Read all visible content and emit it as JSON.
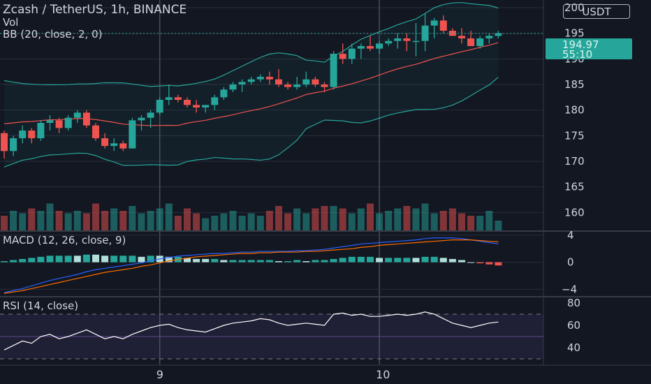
{
  "header": {
    "title": "Zcash / TetherUS, 1h, BINANCE",
    "volume_label": "Vol",
    "bb_label": "BB (20, close, 2, 0)",
    "currency": "USDT"
  },
  "price_tag": {
    "price": "194.97",
    "countdown": "55:10"
  },
  "colors": {
    "background": "#131722",
    "up": "#26a69a",
    "down": "#ef5350",
    "bb_band": "#26a69a",
    "bb_basis": "#ef5350",
    "macd_line": "#2962ff",
    "signal_line": "#ff6d00",
    "rsi_line": "#ffffff",
    "rsi_band": "#7e57c2"
  },
  "panes": {
    "macd_label": "MACD (12, 26, close, 9)",
    "rsi_label": "RSI (14, close)"
  },
  "chart_data": {
    "type": "candlestick",
    "price_axis": {
      "ticks": [
        "200",
        "195",
        "190",
        "185",
        "180",
        "175",
        "170",
        "165",
        "160"
      ],
      "range": [
        156.5,
        201.5
      ]
    },
    "macd_axis": {
      "ticks": [
        "4",
        "0",
        "−4"
      ],
      "range": [
        -5,
        4.5
      ]
    },
    "rsi_axis": {
      "ticks": [
        "80",
        "60",
        "40"
      ],
      "range": [
        25,
        85
      ],
      "bands": [
        70,
        30
      ]
    },
    "time_labels": [
      {
        "label": "9",
        "bar": 17
      },
      {
        "label": "10",
        "bar": 41
      }
    ],
    "candles": [
      [
        175.5,
        176.0,
        170.5,
        172.0
      ],
      [
        172.0,
        175.0,
        171.0,
        174.5
      ],
      [
        174.5,
        177.0,
        173.5,
        176.0
      ],
      [
        176.0,
        176.5,
        173.5,
        174.5
      ],
      [
        174.5,
        178.0,
        174.0,
        177.5
      ],
      [
        177.5,
        179.0,
        176.0,
        178.0
      ],
      [
        178.0,
        178.5,
        175.5,
        176.5
      ],
      [
        176.5,
        179.0,
        176.0,
        178.5
      ],
      [
        178.5,
        180.0,
        177.5,
        179.5
      ],
      [
        179.5,
        180.0,
        176.5,
        177.0
      ],
      [
        177.0,
        177.5,
        174.0,
        174.5
      ],
      [
        174.5,
        175.5,
        172.5,
        173.0
      ],
      [
        173.0,
        174.5,
        172.0,
        173.5
      ],
      [
        173.5,
        174.0,
        172.0,
        172.5
      ],
      [
        172.5,
        178.5,
        172.5,
        178.0
      ],
      [
        178.0,
        179.0,
        176.0,
        178.5
      ],
      [
        178.5,
        180.0,
        176.5,
        179.5
      ],
      [
        179.5,
        182.5,
        179.0,
        182.0
      ],
      [
        182.0,
        185.0,
        181.0,
        182.5
      ],
      [
        182.5,
        183.0,
        181.5,
        182.0
      ],
      [
        182.0,
        182.5,
        180.5,
        181.0
      ],
      [
        181.0,
        182.0,
        179.5,
        180.5
      ],
      [
        180.5,
        181.0,
        179.5,
        181.0
      ],
      [
        181.0,
        183.0,
        180.0,
        182.5
      ],
      [
        182.5,
        184.5,
        182.0,
        184.0
      ],
      [
        184.0,
        185.5,
        183.5,
        185.0
      ],
      [
        185.0,
        186.0,
        183.5,
        185.5
      ],
      [
        185.5,
        186.5,
        185.0,
        186.0
      ],
      [
        186.0,
        187.0,
        185.5,
        186.5
      ],
      [
        186.5,
        187.5,
        185.0,
        186.0
      ],
      [
        186.0,
        188.0,
        184.5,
        185.0
      ],
      [
        185.0,
        185.5,
        184.0,
        184.5
      ],
      [
        184.5,
        186.5,
        184.0,
        185.0
      ],
      [
        185.0,
        187.5,
        184.5,
        186.0
      ],
      [
        186.0,
        186.5,
        184.5,
        185.0
      ],
      [
        185.0,
        185.5,
        183.5,
        184.5
      ],
      [
        184.5,
        191.5,
        184.0,
        191.0
      ],
      [
        191.0,
        193.0,
        189.0,
        190.0
      ],
      [
        190.0,
        193.0,
        189.0,
        192.0
      ],
      [
        192.0,
        193.0,
        190.0,
        192.5
      ],
      [
        192.5,
        194.5,
        191.5,
        192.0
      ],
      [
        192.0,
        193.5,
        191.0,
        193.0
      ],
      [
        193.0,
        194.0,
        192.5,
        193.5
      ],
      [
        193.5,
        195.0,
        192.0,
        194.0
      ],
      [
        194.0,
        195.0,
        191.5,
        193.5
      ],
      [
        193.5,
        197.0,
        190.5,
        193.5
      ],
      [
        193.5,
        199.0,
        191.5,
        196.5
      ],
      [
        196.5,
        198.0,
        194.0,
        197.5
      ],
      [
        197.5,
        198.5,
        195.0,
        195.5
      ],
      [
        195.5,
        196.0,
        194.5,
        194.5
      ],
      [
        194.5,
        196.0,
        193.0,
        194.0
      ],
      [
        194.0,
        195.5,
        192.5,
        192.5
      ],
      [
        192.5,
        194.5,
        192.0,
        194.0
      ],
      [
        194.0,
        195.0,
        193.0,
        194.5
      ],
      [
        194.5,
        195.5,
        194.0,
        195.0
      ]
    ],
    "volume": [
      0.3,
      0.4,
      0.35,
      0.45,
      0.4,
      0.55,
      0.4,
      0.35,
      0.4,
      0.35,
      0.55,
      0.4,
      0.45,
      0.4,
      0.5,
      0.35,
      0.4,
      0.45,
      0.55,
      0.3,
      0.45,
      0.35,
      0.25,
      0.3,
      0.35,
      0.4,
      0.3,
      0.35,
      0.3,
      0.4,
      0.5,
      0.35,
      0.45,
      0.35,
      0.45,
      0.5,
      0.5,
      0.45,
      0.35,
      0.45,
      0.55,
      0.35,
      0.4,
      0.45,
      0.5,
      0.45,
      0.55,
      0.35,
      0.4,
      0.45,
      0.35,
      0.3,
      0.3,
      0.4,
      0.2
    ],
    "macd": [
      -4.5,
      -4.2,
      -3.9,
      -3.5,
      -3.1,
      -2.7,
      -2.4,
      -2.1,
      -1.8,
      -1.4,
      -1.1,
      -0.9,
      -0.7,
      -0.5,
      -0.3,
      -0.1,
      0.2,
      0.5,
      0.7,
      0.9,
      1.0,
      1.1,
      1.2,
      1.3,
      1.3,
      1.4,
      1.5,
      1.5,
      1.6,
      1.6,
      1.6,
      1.6,
      1.7,
      1.7,
      1.8,
      1.9,
      2.1,
      2.3,
      2.5,
      2.7,
      2.8,
      2.9,
      3.0,
      3.1,
      3.2,
      3.3,
      3.5,
      3.6,
      3.6,
      3.6,
      3.5,
      3.3,
      3.1,
      2.9,
      2.7
    ],
    "signal": [
      -4.6,
      -4.4,
      -4.2,
      -3.9,
      -3.6,
      -3.3,
      -3.0,
      -2.7,
      -2.4,
      -2.1,
      -1.8,
      -1.5,
      -1.3,
      -1.1,
      -0.9,
      -0.6,
      -0.4,
      -0.1,
      0.2,
      0.4,
      0.6,
      0.8,
      0.9,
      1.0,
      1.1,
      1.2,
      1.3,
      1.3,
      1.4,
      1.4,
      1.5,
      1.5,
      1.5,
      1.6,
      1.6,
      1.7,
      1.8,
      1.9,
      2.0,
      2.2,
      2.3,
      2.5,
      2.6,
      2.7,
      2.8,
      2.9,
      3.0,
      3.1,
      3.2,
      3.3,
      3.3,
      3.3,
      3.2,
      3.1,
      3.0
    ],
    "rsi": [
      38,
      42,
      46,
      44,
      50,
      52,
      48,
      50,
      53,
      56,
      52,
      48,
      50,
      48,
      52,
      55,
      58,
      60,
      61,
      58,
      56,
      55,
      54,
      57,
      60,
      62,
      63,
      64,
      66,
      65,
      62,
      60,
      61,
      62,
      61,
      60,
      70,
      71,
      69,
      70,
      68,
      68,
      69,
      70,
      69,
      70,
      72,
      70,
      66,
      62,
      60,
      58,
      60,
      62,
      63
    ]
  }
}
